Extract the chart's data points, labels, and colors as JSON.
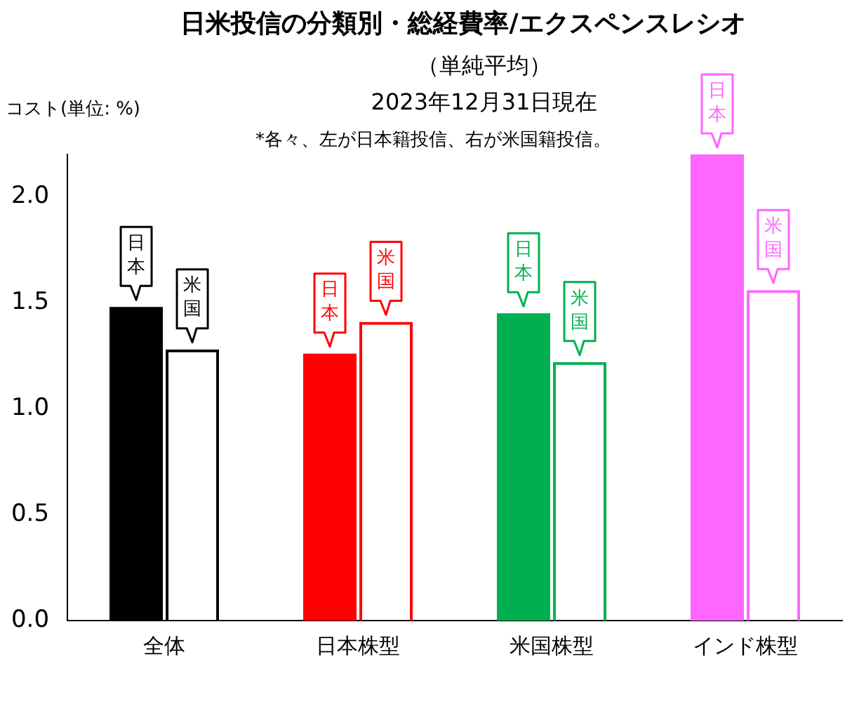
{
  "chart_data": {
    "type": "bar",
    "title": "日米投信の分類別・総経費率/エクスペンスレシオ",
    "subtitle": "（単純平均）",
    "ylabel": "コスト(単位: %)",
    "annotations": [
      "2023年12月31日現在",
      "*各々、左が日本籍投信、右が米国籍投信。"
    ],
    "categories": [
      "全体",
      "日本株型",
      "米国株型",
      "インド株型"
    ],
    "series": [
      {
        "name": "日本",
        "colors": [
          "#000000",
          "#ff0000",
          "#00b050",
          "#ff66ff"
        ],
        "values": [
          1.48,
          1.26,
          1.45,
          2.2
        ]
      },
      {
        "name": "米国",
        "colors": [
          "#000000",
          "#ff0000",
          "#00b050",
          "#ff66ff"
        ],
        "values": [
          1.28,
          1.41,
          1.22,
          1.56
        ]
      }
    ],
    "ylim": [
      0,
      2.2
    ],
    "yticks": [
      {
        "value": 0,
        "label": "0.0"
      },
      {
        "value": 0.5,
        "label": "0.5"
      },
      {
        "value": 1,
        "label": "1.0"
      },
      {
        "value": 1.5,
        "label": "1.5"
      },
      {
        "value": 2,
        "label": "2.0"
      }
    ],
    "grid": false,
    "legend": false
  }
}
